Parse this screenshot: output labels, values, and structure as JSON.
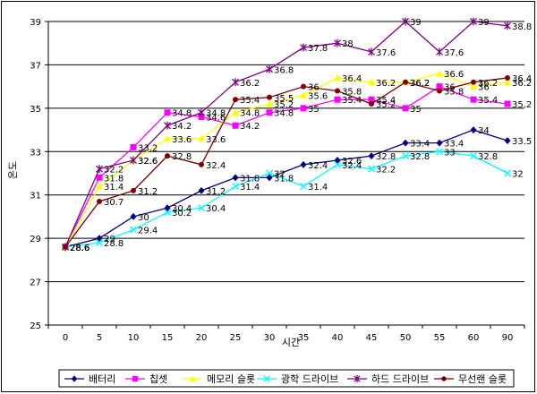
{
  "chart_data": {
    "type": "line",
    "title": "",
    "xlabel": "시간",
    "ylabel": "온도",
    "ylim": [
      25,
      39
    ],
    "yticks": [
      25,
      27,
      29,
      31,
      33,
      35,
      37,
      39
    ],
    "grid": "horizontal",
    "legend": "bottom",
    "categories": [
      "0",
      "5",
      "10",
      "15",
      "20",
      "25",
      "30",
      "35",
      "40",
      "45",
      "50",
      "55",
      "60",
      "90"
    ],
    "series": [
      {
        "name": "배터리",
        "color": "#000080",
        "marker": "diamond",
        "values": [
          28.6,
          29,
          30,
          30.4,
          31.2,
          31.8,
          31.8,
          32.4,
          32.6,
          32.8,
          33.4,
          33.4,
          34,
          33.5
        ],
        "labels": [
          "28.6",
          "29",
          "30",
          "30.4",
          "31.2",
          "31.8",
          "31.8",
          "32.4",
          "32.6",
          "32.8",
          "33.4",
          "33.4",
          "34",
          "33.5"
        ]
      },
      {
        "name": "칩셋",
        "color": "#ff00ff",
        "marker": "square",
        "values": [
          28.6,
          31.8,
          33.2,
          34.8,
          34.6,
          34.2,
          34.8,
          35,
          35.4,
          35.4,
          35,
          36,
          35.4,
          35.2
        ],
        "labels": [
          "28.6",
          "31.8",
          "33.2",
          "34.8",
          "34.6",
          "34.2",
          "34.8",
          "35",
          "35.4",
          "35.4",
          "35",
          "36",
          "35.4",
          "35.2"
        ]
      },
      {
        "name": "메모리 슬롯",
        "color": "#ffff00",
        "marker": "triangle",
        "values": [
          28.6,
          31.4,
          32.6,
          33.6,
          33.6,
          34.8,
          35.2,
          35.6,
          36.4,
          36.2,
          36.2,
          36.6,
          36,
          36.2
        ],
        "labels": [
          "28.6",
          "31.4",
          "32.6",
          "33.6",
          "33.6",
          "34.8",
          "35.2",
          "35.6",
          "36.4",
          "36.2",
          "36.2",
          "36.6",
          "36",
          "36.2"
        ]
      },
      {
        "name": "광학 드라이브",
        "color": "#00ffff",
        "marker": "x",
        "values": [
          28.6,
          28.8,
          29.4,
          30.2,
          30.4,
          31.4,
          32,
          31.4,
          32.4,
          32.2,
          32.8,
          33,
          32.8,
          32
        ],
        "labels": [
          "28.6",
          "28.8",
          "29.4",
          "30.2",
          "30.4",
          "31.4",
          "32",
          "31.4",
          "32.4",
          "32.2",
          "32.8",
          "33",
          "32.8",
          "32"
        ]
      },
      {
        "name": "하드 드라이브",
        "color": "#800080",
        "marker": "star",
        "values": [
          28.6,
          32.2,
          32.6,
          34.2,
          34.8,
          36.2,
          36.8,
          37.8,
          38,
          37.6,
          39,
          37.6,
          39,
          38.8
        ],
        "labels": [
          "28.6",
          "32.2",
          "32.6",
          "34.2",
          "34.8",
          "36.2",
          "36.8",
          "37.8",
          "38",
          "37.6",
          "39",
          "37.6",
          "39",
          "38.8"
        ]
      },
      {
        "name": "무선랜 슬롯",
        "color": "#800000",
        "marker": "circle",
        "values": [
          28.6,
          30.7,
          31.2,
          32.8,
          32.4,
          35.4,
          35.5,
          36,
          35.8,
          35.2,
          36.2,
          35.8,
          36.2,
          36.4
        ],
        "labels": [
          "28.6",
          "30.7",
          "31.2",
          "32.8",
          "32.4",
          "35.4",
          "35.5",
          "36",
          "35.8",
          "35.2",
          "36.2",
          "35.8",
          "36.2",
          "36.4"
        ]
      }
    ]
  }
}
